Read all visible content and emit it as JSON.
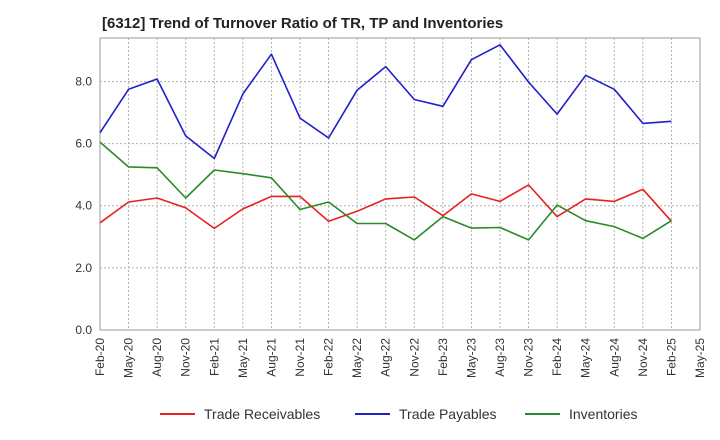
{
  "chart_data": {
    "type": "line",
    "title": "[6312]  Trend of Turnover Ratio of TR, TP and Inventories",
    "x": [
      "Feb-20",
      "May-20",
      "Aug-20",
      "Nov-20",
      "Feb-21",
      "May-21",
      "Aug-21",
      "Nov-21",
      "Feb-22",
      "May-22",
      "Aug-22",
      "Nov-22",
      "Feb-23",
      "May-23",
      "Aug-23",
      "Nov-23",
      "Feb-24",
      "May-24",
      "Aug-24",
      "Nov-24",
      "Feb-25"
    ],
    "x_ticks": [
      "Feb-20",
      "May-20",
      "Aug-20",
      "Nov-20",
      "Feb-21",
      "May-21",
      "Aug-21",
      "Nov-21",
      "Feb-22",
      "May-22",
      "Aug-22",
      "Nov-22",
      "Feb-23",
      "May-23",
      "Aug-23",
      "Nov-23",
      "Feb-24",
      "May-24",
      "Aug-24",
      "Nov-24",
      "Feb-25",
      "May-25"
    ],
    "ylim": [
      0,
      9.4
    ],
    "y_ticks": [
      "0.0",
      "2.0",
      "4.0",
      "6.0",
      "8.0"
    ],
    "grid": true,
    "legend_position": "bottom",
    "series": [
      {
        "name": "Trade Receivables",
        "color": "#e8201f",
        "values": [
          3.45,
          4.12,
          4.25,
          3.93,
          3.27,
          3.9,
          4.3,
          4.3,
          3.5,
          3.82,
          4.22,
          4.28,
          3.68,
          4.38,
          4.14,
          4.67,
          3.65,
          4.22,
          4.14,
          4.53,
          3.5
        ]
      },
      {
        "name": "Trade Payables",
        "color": "#1f1fcc",
        "values": [
          6.35,
          7.75,
          8.08,
          6.25,
          5.52,
          7.6,
          8.88,
          6.82,
          6.18,
          7.72,
          8.48,
          7.42,
          7.2,
          8.7,
          9.18,
          7.98,
          6.95,
          8.2,
          7.75,
          6.65,
          6.72
        ]
      },
      {
        "name": "Inventories",
        "color": "#2a8a2a",
        "values": [
          6.05,
          5.25,
          5.22,
          4.25,
          5.15,
          5.03,
          4.9,
          3.88,
          4.12,
          3.43,
          3.43,
          2.9,
          3.65,
          3.28,
          3.3,
          2.9,
          4.02,
          3.52,
          3.33,
          2.95,
          3.52
        ]
      }
    ]
  }
}
